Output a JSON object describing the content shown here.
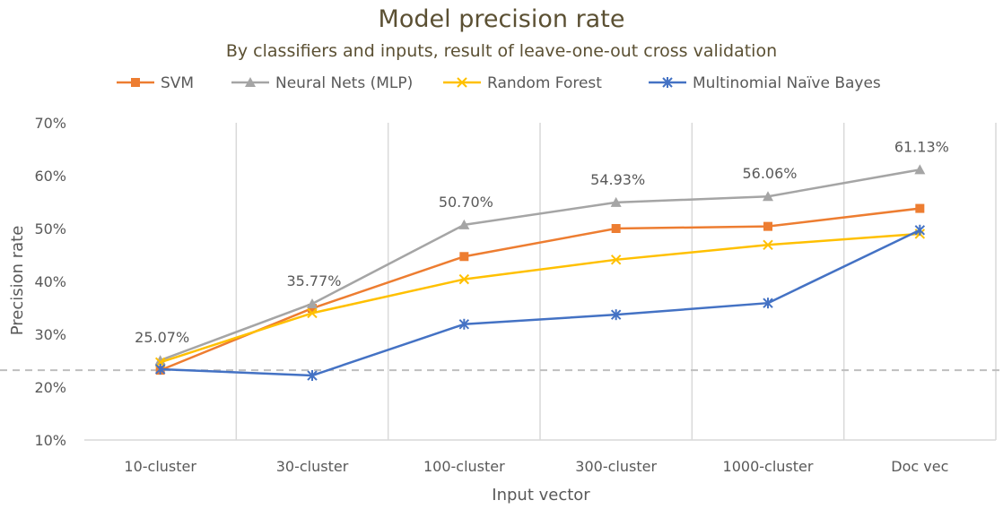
{
  "chart_data": {
    "type": "line",
    "title": "Model precision rate",
    "subtitle": "By classifiers and inputs, result of leave-one-out cross validation",
    "xlabel": "Input vector",
    "ylabel": "Precision rate",
    "categories": [
      "10-cluster",
      "30-cluster",
      "100-cluster",
      "300-cluster",
      "1000-cluster",
      "Doc vec"
    ],
    "ylim": [
      0.1,
      0.7
    ],
    "yticks": [
      0.1,
      0.2,
      0.3,
      0.4,
      0.5,
      0.6,
      0.7
    ],
    "ytick_labels": [
      "10%",
      "20%",
      "30%",
      "40%",
      "50%",
      "60%",
      "70%"
    ],
    "vertical_grid": true,
    "legend_position": "top",
    "baseline": {
      "value": 0.232,
      "color": "#bfbfbf",
      "style": "dashed"
    },
    "series": [
      {
        "name": "SVM",
        "color": "#ed7d31",
        "marker": "square",
        "values": [
          0.232,
          0.349,
          0.447,
          0.5,
          0.504,
          0.538
        ]
      },
      {
        "name": "Neural Nets (MLP)",
        "color": "#a5a5a5",
        "marker": "triangle",
        "values": [
          0.2507,
          0.3577,
          0.507,
          0.5493,
          0.5606,
          0.6113
        ],
        "labels": [
          "25.07%",
          "35.77%",
          "50.70%",
          "54.93%",
          "56.06%",
          "61.13%"
        ]
      },
      {
        "name": "Random Forest",
        "color": "#ffc000",
        "marker": "x",
        "values": [
          0.247,
          0.34,
          0.404,
          0.441,
          0.469,
          0.49
        ]
      },
      {
        "name": "Multinomial Naïve Bayes",
        "color": "#4472c4",
        "marker": "star",
        "values": [
          0.234,
          0.222,
          0.319,
          0.337,
          0.359,
          0.497
        ]
      }
    ]
  }
}
